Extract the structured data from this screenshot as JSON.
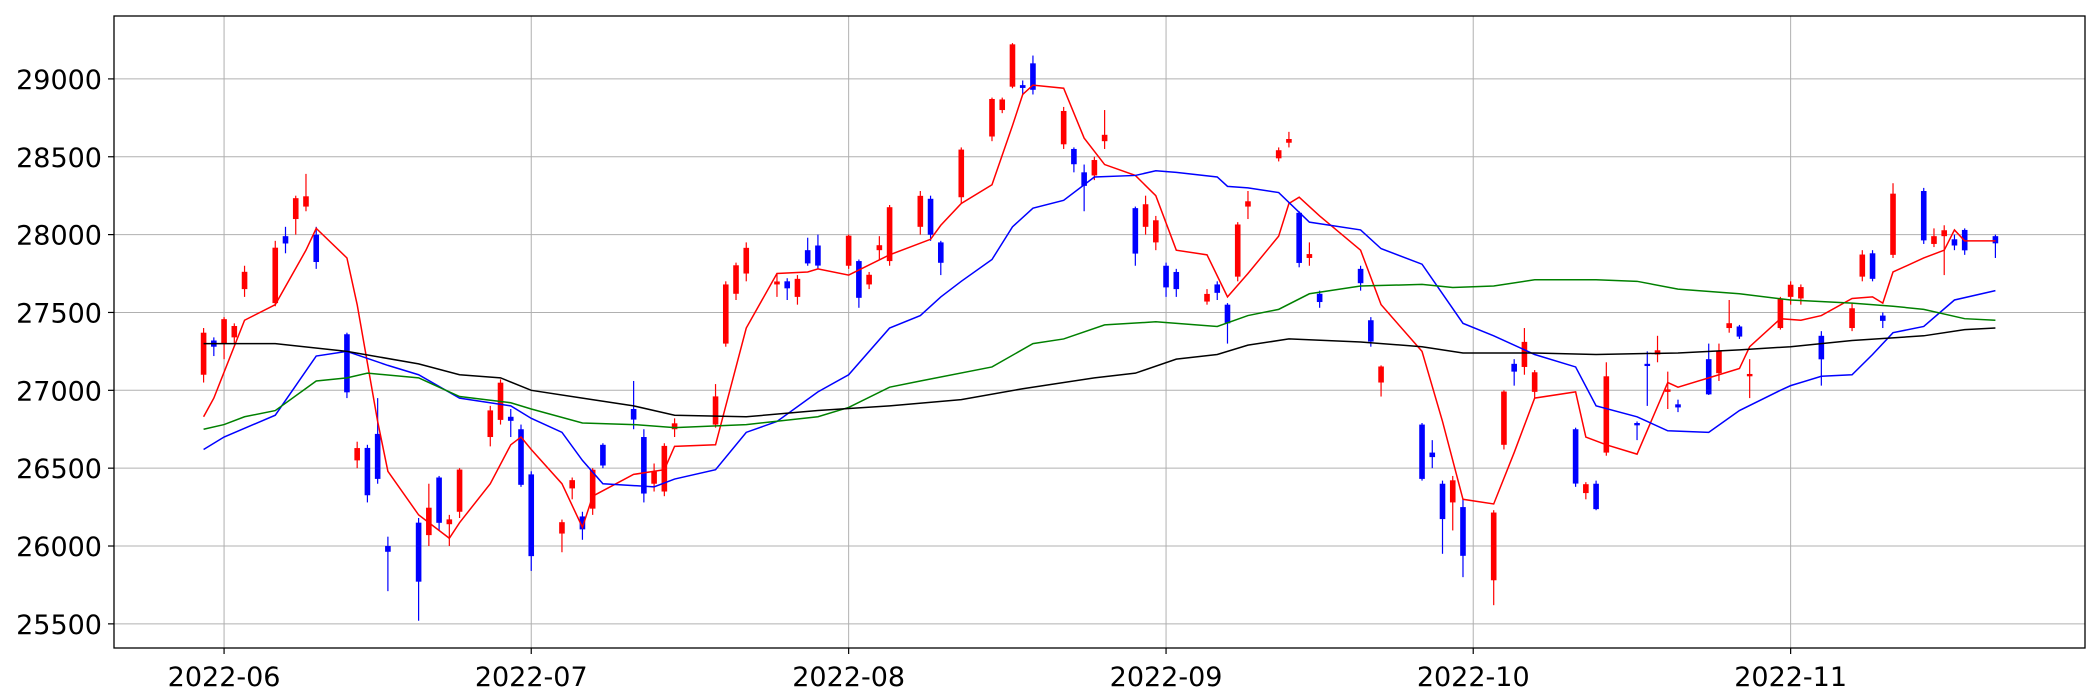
{
  "chart_data": {
    "type": "candlestick",
    "up_color": "#ff0000",
    "down_color": "#0000ff",
    "grid": true,
    "xlim": [
      19133.25,
      19325.75
    ],
    "ylim": [
      25345,
      29404
    ],
    "xticks": [
      {
        "value": 19144,
        "label": "2022-06"
      },
      {
        "value": 19174,
        "label": "2022-07"
      },
      {
        "value": 19205,
        "label": "2022-08"
      },
      {
        "value": 19236,
        "label": "2022-09"
      },
      {
        "value": 19266,
        "label": "2022-10"
      },
      {
        "value": 19297,
        "label": "2022-11"
      }
    ],
    "yticks": [
      25500,
      26000,
      26500,
      27000,
      27500,
      28000,
      28500,
      29000
    ],
    "x": [
      19142,
      19143,
      19144,
      19145,
      19146,
      19149,
      19150,
      19151,
      19152,
      19153,
      19156,
      19157,
      19158,
      19159,
      19160,
      19163,
      19164,
      19165,
      19166,
      19167,
      19170,
      19171,
      19172,
      19173,
      19174,
      19177,
      19178,
      19179,
      19180,
      19181,
      19184,
      19185,
      19186,
      19187,
      19188,
      19192,
      19193,
      19194,
      19195,
      19198,
      19199,
      19200,
      19201,
      19202,
      19205,
      19206,
      19207,
      19208,
      19209,
      19212,
      19213,
      19214,
      19216,
      19219,
      19220,
      19221,
      19222,
      19223,
      19226,
      19227,
      19228,
      19229,
      19230,
      19233,
      19234,
      19235,
      19236,
      19237,
      19240,
      19241,
      19242,
      19243,
      19244,
      19247,
      19248,
      19249,
      19250,
      19251,
      19255,
      19256,
      19257,
      19261,
      19262,
      19263,
      19264,
      19265,
      19268,
      19269,
      19270,
      19271,
      19272,
      19276,
      19277,
      19278,
      19279,
      19282,
      19283,
      19284,
      19285,
      19286,
      19289,
      19290,
      19291,
      19292,
      19293,
      19296,
      19297,
      19298,
      19300,
      19303,
      19304,
      19305,
      19306,
      19307,
      19310,
      19311,
      19312,
      19313,
      19314,
      19317
    ],
    "open": [
      27100,
      27320,
      27300,
      27340,
      27650,
      27560,
      27990,
      28100,
      28180,
      28000,
      27360,
      26550,
      26630,
      26720,
      26000,
      26150,
      26070,
      26440,
      26140,
      26220,
      26700,
      26810,
      26830,
      26750,
      26460,
      26080,
      26370,
      26190,
      26240,
      26650,
      26880,
      26700,
      26400,
      26350,
      26750,
      26780,
      27300,
      27620,
      27750,
      27680,
      27700,
      27600,
      27900,
      27930,
      27800,
      27830,
      27680,
      27900,
      27830,
      28050,
      28230,
      27950,
      28240,
      28630,
      28800,
      28950,
      28960,
      29100,
      28580,
      28550,
      28400,
      28380,
      28600,
      28170,
      28050,
      27950,
      27800,
      27760,
      27570,
      27680,
      27550,
      27730,
      28180,
      28490,
      28590,
      28140,
      27850,
      27620,
      27780,
      27450,
      27050,
      26780,
      26600,
      26400,
      26280,
      26250,
      25780,
      26650,
      27170,
      27150,
      26990,
      26750,
      26340,
      26400,
      26600,
      26790,
      27170,
      27230,
      26990,
      26910,
      27200,
      27110,
      27400,
      27410,
      27090,
      27400,
      27600,
      27590,
      27350,
      27400,
      27730,
      27880,
      27480,
      27870,
      28280,
      27940,
      27990,
      27970,
      28030,
      27990
    ],
    "high": [
      27400,
      27340,
      27470,
      27430,
      27800,
      27960,
      28050,
      28250,
      28390,
      28050,
      27370,
      26670,
      26650,
      26950,
      26060,
      26180,
      26400,
      26450,
      26200,
      26500,
      26900,
      27070,
      26880,
      26780,
      26480,
      26170,
      26440,
      26220,
      26500,
      26660,
      27060,
      26750,
      26530,
      26660,
      26820,
      27040,
      27700,
      27820,
      27950,
      27750,
      27720,
      27740,
      27980,
      28000,
      28000,
      27840,
      27760,
      27990,
      28190,
      28280,
      28250,
      27960,
      28560,
      28880,
      28880,
      29230,
      28990,
      29150,
      28820,
      28560,
      28450,
      28500,
      28800,
      28180,
      28250,
      28120,
      27820,
      27780,
      27650,
      27700,
      27560,
      28080,
      28280,
      28560,
      28660,
      28150,
      27950,
      27640,
      27800,
      27470,
      27160,
      26790,
      26680,
      26420,
      26450,
      26300,
      26230,
      27000,
      27200,
      27400,
      27130,
      26760,
      26410,
      26420,
      27180,
      26800,
      27250,
      27350,
      27120,
      26940,
      27300,
      27300,
      27580,
      27420,
      27200,
      27600,
      27700,
      27680,
      27380,
      27560,
      27900,
      27900,
      27500,
      28330,
      28300,
      28040,
      28060,
      28000,
      28040,
      28000
    ],
    "low": [
      27050,
      27220,
      27200,
      27300,
      27600,
      27540,
      27880,
      28000,
      28150,
      27780,
      26950,
      26500,
      26280,
      26400,
      25710,
      25520,
      26000,
      26100,
      26000,
      26180,
      26640,
      26780,
      26700,
      26380,
      25840,
      25960,
      26300,
      26040,
      26200,
      26500,
      26750,
      26280,
      26350,
      26320,
      26700,
      26760,
      27280,
      27580,
      27700,
      27600,
      27580,
      27550,
      27800,
      27780,
      27780,
      27530,
      27650,
      27840,
      27800,
      28000,
      27960,
      27740,
      28200,
      28600,
      28780,
      28940,
      28900,
      28900,
      28550,
      28400,
      28150,
      28350,
      28550,
      27800,
      28000,
      27900,
      27600,
      27600,
      27550,
      27580,
      27300,
      27700,
      28100,
      28470,
      28560,
      27790,
      27800,
      27530,
      27640,
      27280,
      26960,
      26420,
      26500,
      25950,
      26100,
      25800,
      25620,
      26620,
      27030,
      27100,
      26950,
      26380,
      26300,
      26230,
      26580,
      26680,
      26900,
      27180,
      26880,
      26860,
      26970,
      27060,
      27370,
      27330,
      26950,
      27390,
      27550,
      27550,
      27030,
      27380,
      27700,
      27700,
      27400,
      27850,
      27940,
      27920,
      27740,
      27900,
      27870,
      27850
    ],
    "close": [
      27370,
      27280,
      27457,
      27413,
      27761,
      27916,
      27943,
      28234,
      28246,
      27824,
      26987,
      26629,
      26326,
      26431,
      25963,
      25771,
      26246,
      26149,
      26171,
      26491,
      26871,
      27049,
      26804,
      26393,
      25935,
      26153,
      26423,
      26107,
      26490,
      26517,
      26812,
      26337,
      26478,
      26643,
      26788,
      26961,
      27680,
      27803,
      27915,
      27699,
      27655,
      27716,
      27815,
      27801,
      27993,
      27594,
      27742,
      27932,
      28176,
      28249,
      27999,
      27819,
      28546,
      28871,
      28868,
      29222,
      28942,
      28930,
      28794,
      28452,
      28313,
      28479,
      28641,
      27878,
      28195,
      28092,
      27661,
      27650,
      27619,
      27626,
      27430,
      28065,
      28214,
      28542,
      28614,
      27818,
      27875,
      27567,
      27688,
      27313,
      27153,
      26431,
      26571,
      26173,
      26422,
      25937,
      26215,
      26992,
      27120,
      27311,
      27116,
      26401,
      26397,
      26237,
      27090,
      26775,
      27156,
      27257,
      27006,
      26890,
      26974,
      27250,
      27431,
      27345,
      27105,
      27587,
      27678,
      27663,
      27199,
      27527,
      27872,
      27716,
      27446,
      28263,
      27963,
      27990,
      28028,
      27930,
      27899,
      27944
    ],
    "lines": [
      {
        "color": "#ff0000",
        "x": [
          19142,
          19143,
          19146,
          19149,
          19152,
          19153,
          19156,
          19157,
          19159,
          19160,
          19163,
          19166,
          19167,
          19170,
          19172,
          19173,
          19174,
          19177,
          19179,
          19180,
          19184,
          19187,
          19188,
          19192,
          19195,
          19198,
          19201,
          19202,
          19205,
          19209,
          19213,
          19214,
          19216,
          19219,
          19221,
          19222,
          19223,
          19226,
          19228,
          19230,
          19233,
          19235,
          19237,
          19240,
          19242,
          19244,
          19247,
          19248,
          19249,
          19251,
          19255,
          19257,
          19261,
          19263,
          19265,
          19268,
          19270,
          19272,
          19276,
          19277,
          19279,
          19282,
          19285,
          19286,
          19289,
          19292,
          19293,
          19296,
          19298,
          19300,
          19303,
          19305,
          19306,
          19307,
          19310,
          19312,
          19313,
          19314,
          19317
        ],
        "values": [
          26830,
          26950,
          27450,
          27550,
          27900,
          28040,
          27850,
          27550,
          26800,
          26480,
          26200,
          26050,
          26150,
          26400,
          26650,
          26700,
          26620,
          26400,
          26120,
          26320,
          26460,
          26490,
          26640,
          26650,
          27400,
          27750,
          27760,
          27780,
          27740,
          27870,
          27970,
          28060,
          28200,
          28320,
          28700,
          28900,
          28960,
          28940,
          28620,
          28450,
          28380,
          28250,
          27900,
          27870,
          27600,
          27750,
          27990,
          28200,
          28240,
          28120,
          27900,
          27550,
          27250,
          26800,
          26300,
          26270,
          26600,
          26950,
          26990,
          26700,
          26650,
          26590,
          27050,
          27020,
          27080,
          27140,
          27280,
          27460,
          27450,
          27480,
          27590,
          27600,
          27560,
          27760,
          27850,
          27900,
          28030,
          27960,
          27960
        ]
      },
      {
        "color": "#0000ff",
        "x": [
          19142,
          19144,
          19149,
          19151,
          19153,
          19156,
          19160,
          19163,
          19167,
          19172,
          19174,
          19177,
          19179,
          19181,
          19186,
          19188,
          19192,
          19195,
          19198,
          19202,
          19205,
          19209,
          19212,
          19214,
          19216,
          19219,
          19221,
          19223,
          19226,
          19229,
          19233,
          19235,
          19237,
          19241,
          19242,
          19244,
          19247,
          19250,
          19255,
          19257,
          19261,
          19265,
          19268,
          19272,
          19276,
          19278,
          19282,
          19285,
          19289,
          19292,
          19296,
          19297,
          19300,
          19303,
          19305,
          19307,
          19310,
          19313,
          19317
        ],
        "values": [
          26620,
          26700,
          26840,
          27030,
          27220,
          27250,
          27160,
          27100,
          26950,
          26900,
          26820,
          26730,
          26550,
          26400,
          26380,
          26430,
          26490,
          26730,
          26800,
          26990,
          27100,
          27400,
          27480,
          27600,
          27700,
          27840,
          28050,
          28170,
          28220,
          28370,
          28380,
          28410,
          28400,
          28370,
          28310,
          28300,
          28270,
          28080,
          28030,
          27910,
          27810,
          27430,
          27350,
          27230,
          27150,
          26900,
          26830,
          26740,
          26730,
          26870,
          27000,
          27030,
          27090,
          27100,
          27230,
          27370,
          27410,
          27580,
          27640
        ]
      },
      {
        "color": "#008000",
        "x": [
          19142,
          19144,
          19146,
          19149,
          19153,
          19156,
          19158,
          19163,
          19167,
          19172,
          19174,
          19179,
          19184,
          19188,
          19195,
          19202,
          19205,
          19209,
          19212,
          19219,
          19223,
          19226,
          19230,
          19235,
          19241,
          19244,
          19247,
          19250,
          19255,
          19261,
          19264,
          19268,
          19272,
          19278,
          19282,
          19286,
          19292,
          19297,
          19303,
          19307,
          19310,
          19314,
          19317
        ],
        "values": [
          26750,
          26780,
          26830,
          26870,
          27060,
          27080,
          27110,
          27080,
          26960,
          26920,
          26880,
          26790,
          26780,
          26760,
          26780,
          26830,
          26890,
          27020,
          27060,
          27150,
          27300,
          27330,
          27420,
          27440,
          27410,
          27480,
          27520,
          27620,
          27670,
          27680,
          27660,
          27670,
          27710,
          27710,
          27700,
          27650,
          27620,
          27580,
          27560,
          27540,
          27520,
          27460,
          27450
        ]
      },
      {
        "color": "#000000",
        "x": [
          19142,
          19149,
          19156,
          19163,
          19167,
          19171,
          19174,
          19179,
          19184,
          19188,
          19195,
          19202,
          19209,
          19216,
          19222,
          19229,
          19233,
          19237,
          19241,
          19244,
          19248,
          19255,
          19261,
          19265,
          19272,
          19278,
          19286,
          19292,
          19297,
          19303,
          19310,
          19314,
          19317
        ],
        "values": [
          27300,
          27300,
          27250,
          27170,
          27100,
          27080,
          27000,
          26950,
          26900,
          26840,
          26830,
          26870,
          26900,
          26940,
          27010,
          27080,
          27110,
          27200,
          27230,
          27290,
          27330,
          27310,
          27280,
          27240,
          27240,
          27230,
          27240,
          27260,
          27280,
          27320,
          27350,
          27390,
          27400
        ]
      }
    ]
  }
}
